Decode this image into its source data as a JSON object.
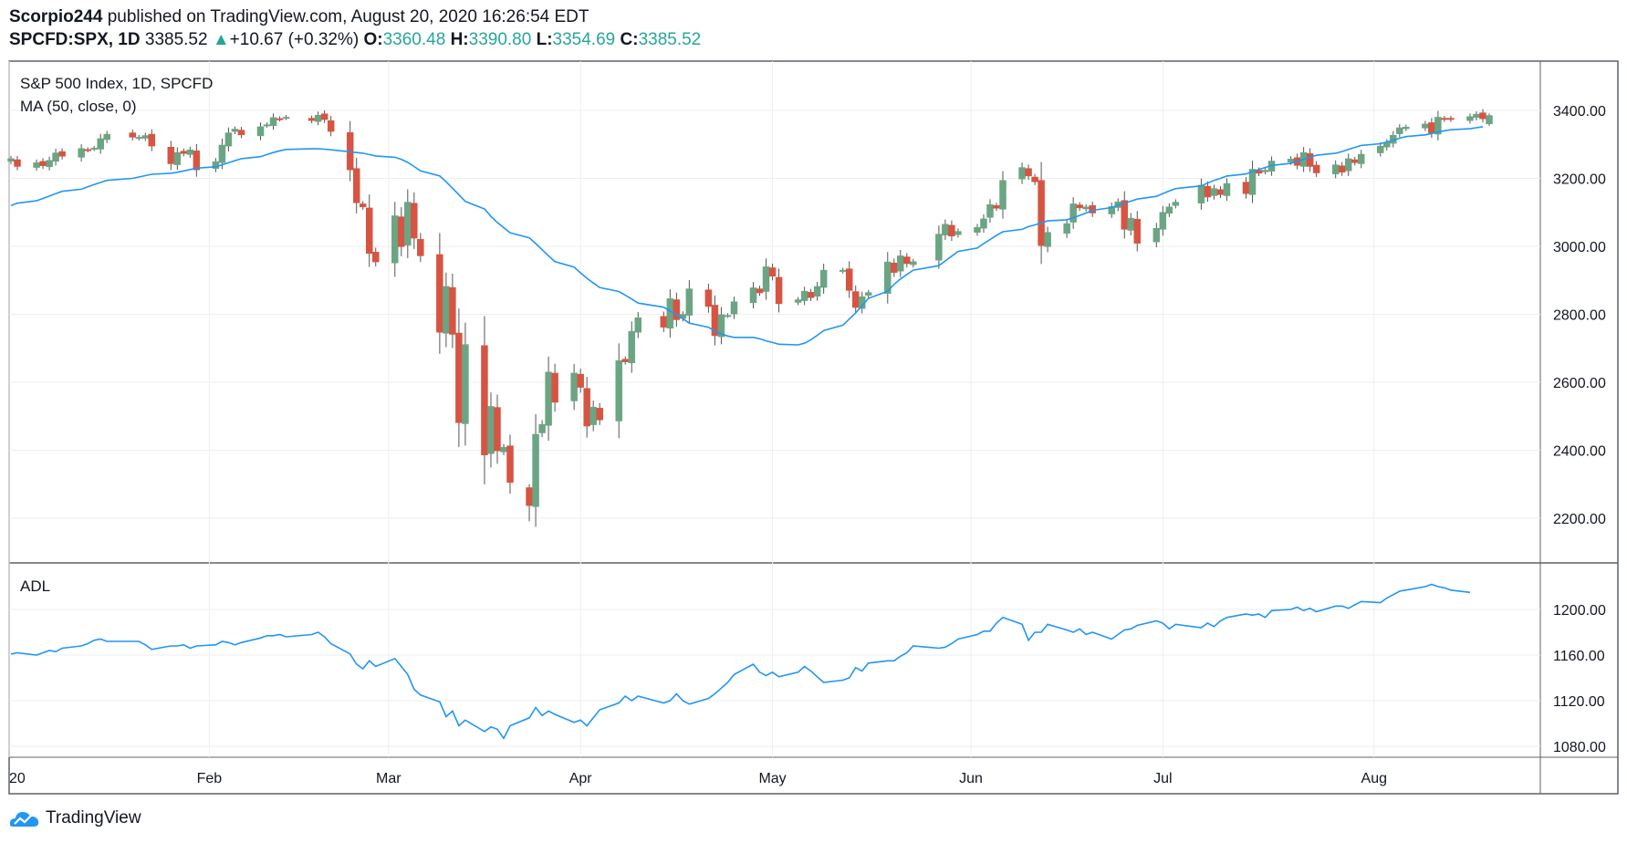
{
  "header": {
    "user": "Scorpio244",
    "published": " published on TradingView.com, August 20, 2020 16:26:54 EDT",
    "symbol": "SPCFD:SPX, 1D",
    "last": "3385.52",
    "change": "+10.67 (+0.32%)",
    "o_label": "O:",
    "o_value": "3360.48",
    "h_label": "H:",
    "h_value": "3390.80",
    "l_label": "L:",
    "l_value": "3354.69",
    "c_label": "C:",
    "c_value": "3385.52"
  },
  "footer": {
    "brand": "TradingView"
  },
  "colors": {
    "up": "#6ba583",
    "down": "#d75442",
    "ma": "#2196f3",
    "adl": "#2196f3",
    "grid": "#eeeeee"
  },
  "chart_data": [
    {
      "type": "candlestick",
      "title": "S&P 500 Index, 1D, SPCFD",
      "overlay_label": "MA (50, close, 0)",
      "ylim": [
        2100,
        3500
      ],
      "y_ticks": [
        "3400.00",
        "3200.00",
        "3000.00",
        "2800.00",
        "2600.00",
        "2400.00",
        "2200.00"
      ],
      "x_ticks": [
        "20",
        "Feb",
        "Mar",
        "Apr",
        "May",
        "Jun",
        "Jul",
        "Aug"
      ],
      "x_range": [
        "2020-01-02",
        "2020-08-20"
      ],
      "dates": [
        "2020-01-02",
        "2020-01-03",
        "2020-01-06",
        "2020-01-07",
        "2020-01-08",
        "2020-01-09",
        "2020-01-10",
        "2020-01-13",
        "2020-01-14",
        "2020-01-15",
        "2020-01-16",
        "2020-01-17",
        "2020-01-21",
        "2020-01-22",
        "2020-01-23",
        "2020-01-24",
        "2020-01-27",
        "2020-01-28",
        "2020-01-29",
        "2020-01-30",
        "2020-01-31",
        "2020-02-03",
        "2020-02-04",
        "2020-02-05",
        "2020-02-06",
        "2020-02-07",
        "2020-02-10",
        "2020-02-11",
        "2020-02-12",
        "2020-02-13",
        "2020-02-14",
        "2020-02-18",
        "2020-02-19",
        "2020-02-20",
        "2020-02-21",
        "2020-02-24",
        "2020-02-25",
        "2020-02-26",
        "2020-02-27",
        "2020-02-28",
        "2020-03-02",
        "2020-03-03",
        "2020-03-04",
        "2020-03-05",
        "2020-03-06",
        "2020-03-09",
        "2020-03-10",
        "2020-03-11",
        "2020-03-12",
        "2020-03-13",
        "2020-03-16",
        "2020-03-17",
        "2020-03-18",
        "2020-03-19",
        "2020-03-20",
        "2020-03-23",
        "2020-03-24",
        "2020-03-25",
        "2020-03-26",
        "2020-03-27",
        "2020-03-30",
        "2020-03-31",
        "2020-04-01",
        "2020-04-02",
        "2020-04-03",
        "2020-04-06",
        "2020-04-07",
        "2020-04-08",
        "2020-04-09",
        "2020-04-13",
        "2020-04-14",
        "2020-04-15",
        "2020-04-16",
        "2020-04-17",
        "2020-04-20",
        "2020-04-21",
        "2020-04-22",
        "2020-04-23",
        "2020-04-24",
        "2020-04-27",
        "2020-04-28",
        "2020-04-29",
        "2020-04-30",
        "2020-05-01",
        "2020-05-04",
        "2020-05-05",
        "2020-05-06",
        "2020-05-07",
        "2020-05-08",
        "2020-05-11",
        "2020-05-12",
        "2020-05-13",
        "2020-05-14",
        "2020-05-15",
        "2020-05-18",
        "2020-05-19",
        "2020-05-20",
        "2020-05-21",
        "2020-05-22",
        "2020-05-26",
        "2020-05-27",
        "2020-05-28",
        "2020-05-29",
        "2020-06-01",
        "2020-06-02",
        "2020-06-03",
        "2020-06-04",
        "2020-06-05",
        "2020-06-08",
        "2020-06-09",
        "2020-06-10",
        "2020-06-11",
        "2020-06-12",
        "2020-06-15",
        "2020-06-16",
        "2020-06-17",
        "2020-06-18",
        "2020-06-19",
        "2020-06-22",
        "2020-06-23",
        "2020-06-24",
        "2020-06-25",
        "2020-06-26",
        "2020-06-29",
        "2020-06-30",
        "2020-07-01",
        "2020-07-02",
        "2020-07-06",
        "2020-07-07",
        "2020-07-08",
        "2020-07-09",
        "2020-07-10",
        "2020-07-13",
        "2020-07-14",
        "2020-07-15",
        "2020-07-16",
        "2020-07-17",
        "2020-07-20",
        "2020-07-21",
        "2020-07-22",
        "2020-07-23",
        "2020-07-24",
        "2020-07-27",
        "2020-07-28",
        "2020-07-29",
        "2020-07-30",
        "2020-07-31",
        "2020-08-03",
        "2020-08-04",
        "2020-08-05",
        "2020-08-06",
        "2020-08-07",
        "2020-08-10",
        "2020-08-11",
        "2020-08-12",
        "2020-08-13",
        "2020-08-14",
        "2020-08-17",
        "2020-08-18",
        "2020-08-19",
        "2020-08-20"
      ],
      "close": [
        3258,
        3235,
        3246,
        3237,
        3253,
        3275,
        3265,
        3288,
        3283,
        3289,
        3317,
        3330,
        3321,
        3321,
        3326,
        3295,
        3243,
        3276,
        3273,
        3284,
        3225,
        3249,
        3298,
        3334,
        3345,
        3328,
        3352,
        3358,
        3379,
        3374,
        3380,
        3370,
        3386,
        3373,
        3338,
        3225,
        3128,
        3116,
        2979,
        2954,
        3090,
        2999,
        3130,
        3024,
        2972,
        2747,
        2882,
        2741,
        2481,
        2711,
        2386,
        2529,
        2398,
        2409,
        2305,
        2237,
        2447,
        2476,
        2630,
        2541,
        2627,
        2585,
        2471,
        2527,
        2489,
        2664,
        2660,
        2750,
        2790,
        2762,
        2846,
        2784,
        2800,
        2875,
        2823,
        2737,
        2799,
        2797,
        2837,
        2878,
        2863,
        2940,
        2912,
        2831,
        2843,
        2868,
        2849,
        2882,
        2930,
        2930,
        2870,
        2820,
        2852,
        2864,
        2954,
        2923,
        2972,
        2949,
        2955,
        3036,
        3065,
        3030,
        3044,
        3056,
        3081,
        3123,
        3112,
        3194,
        3232,
        3207,
        3190,
        3002,
        3041,
        3067,
        3125,
        3113,
        3116,
        3098,
        3117,
        3131,
        3050,
        3083,
        3009,
        3053,
        3100,
        3116,
        3130,
        3180,
        3145,
        3170,
        3152,
        3185,
        3155,
        3227,
        3215,
        3224,
        3251,
        3257,
        3238,
        3276,
        3235,
        3216,
        3240,
        3218,
        3258,
        3246,
        3271,
        3295,
        3306,
        3327,
        3349,
        3351,
        3360,
        3333,
        3380,
        3373,
        3373,
        3382,
        3389,
        3375,
        3385
      ],
      "ma50": [
        3120,
        3127,
        3134,
        3141,
        3148,
        3155,
        3162,
        3168,
        3175,
        3182,
        3188,
        3194,
        3200,
        3204,
        3208,
        3212,
        3215,
        3218,
        3222,
        3226,
        3230,
        3234,
        3240,
        3246,
        3252,
        3258,
        3264,
        3270,
        3276,
        3281,
        3285,
        3287,
        3287,
        3286,
        3284,
        3278,
        3276,
        3274,
        3270,
        3266,
        3262,
        3256,
        3247,
        3235,
        3222,
        3207,
        3190,
        3171,
        3152,
        3132,
        3110,
        3088,
        3070,
        3055,
        3040,
        3025,
        3008,
        2990,
        2972,
        2955,
        2939,
        2922,
        2906,
        2892,
        2879,
        2867,
        2856,
        2845,
        2833,
        2821,
        2810,
        2799,
        2787,
        2774,
        2762,
        2751,
        2742,
        2736,
        2732,
        2732,
        2728,
        2722,
        2717,
        2712,
        2710,
        2715,
        2725,
        2738,
        2752,
        2768,
        2786,
        2804,
        2825,
        2847,
        2868,
        2888,
        2904,
        2917,
        2930,
        2943,
        2957,
        2971,
        2985,
        2995,
        3008,
        3020,
        3032,
        3043,
        3050,
        3058,
        3063,
        3069,
        3075,
        3078,
        3084,
        3091,
        3098,
        3106,
        3114,
        3121,
        3127,
        3133,
        3139,
        3147,
        3155,
        3163,
        3170,
        3178,
        3186,
        3194,
        3200,
        3207,
        3213,
        3220,
        3226,
        3232,
        3238,
        3244,
        3250,
        3256,
        3262,
        3268,
        3274,
        3279,
        3285,
        3291,
        3297,
        3302,
        3307,
        3312,
        3318,
        3323,
        3328,
        3332,
        3336,
        3340,
        3343,
        3346,
        3349,
        3352
      ],
      "sample_candles": [
        {
          "date": "2020-03-23",
          "open": 2290,
          "high": 2300,
          "low": 2191,
          "close": 2237
        },
        {
          "date": "2020-08-20",
          "open": 3360.48,
          "high": 3390.8,
          "low": 3354.69,
          "close": 3385.52
        }
      ]
    },
    {
      "type": "line",
      "title": "ADL",
      "ylim": [
        1070,
        1235
      ],
      "y_ticks": [
        "1200.00",
        "1160.00",
        "1120.00",
        "1080.00"
      ],
      "values": [
        1161,
        1162,
        1160,
        1162,
        1164,
        1163,
        1166,
        1168,
        1170,
        1173,
        1174,
        1172,
        1172,
        1172,
        1169,
        1165,
        1168,
        1168,
        1169,
        1166,
        1168,
        1169,
        1172,
        1171,
        1169,
        1171,
        1175,
        1177,
        1177,
        1178,
        1176,
        1178,
        1180,
        1176,
        1170,
        1161,
        1152,
        1148,
        1155,
        1150,
        1157,
        1150,
        1143,
        1130,
        1125,
        1119,
        1106,
        1111,
        1098,
        1103,
        1093,
        1097,
        1095,
        1087,
        1098,
        1105,
        1114,
        1107,
        1111,
        1108,
        1101,
        1103,
        1098,
        1105,
        1112,
        1118,
        1124,
        1120,
        1124,
        1118,
        1120,
        1126,
        1120,
        1117,
        1122,
        1126,
        1131,
        1136,
        1143,
        1152,
        1145,
        1142,
        1145,
        1141,
        1145,
        1150,
        1146,
        1141,
        1136,
        1138,
        1140,
        1149,
        1146,
        1153,
        1155,
        1155,
        1159,
        1162,
        1168,
        1166,
        1167,
        1170,
        1174,
        1178,
        1181,
        1181,
        1188,
        1193,
        1187,
        1173,
        1180,
        1180,
        1187,
        1182,
        1180,
        1183,
        1178,
        1180,
        1174,
        1178,
        1182,
        1183,
        1186,
        1190,
        1188,
        1183,
        1187,
        1184,
        1188,
        1185,
        1190,
        1193,
        1196,
        1195,
        1196,
        1193,
        1199,
        1200,
        1202,
        1199,
        1201,
        1198,
        1203,
        1203,
        1201,
        1204,
        1207,
        1206,
        1210,
        1213,
        1216,
        1217,
        1220,
        1222,
        1220,
        1219,
        1217,
        1215
      ]
    }
  ]
}
